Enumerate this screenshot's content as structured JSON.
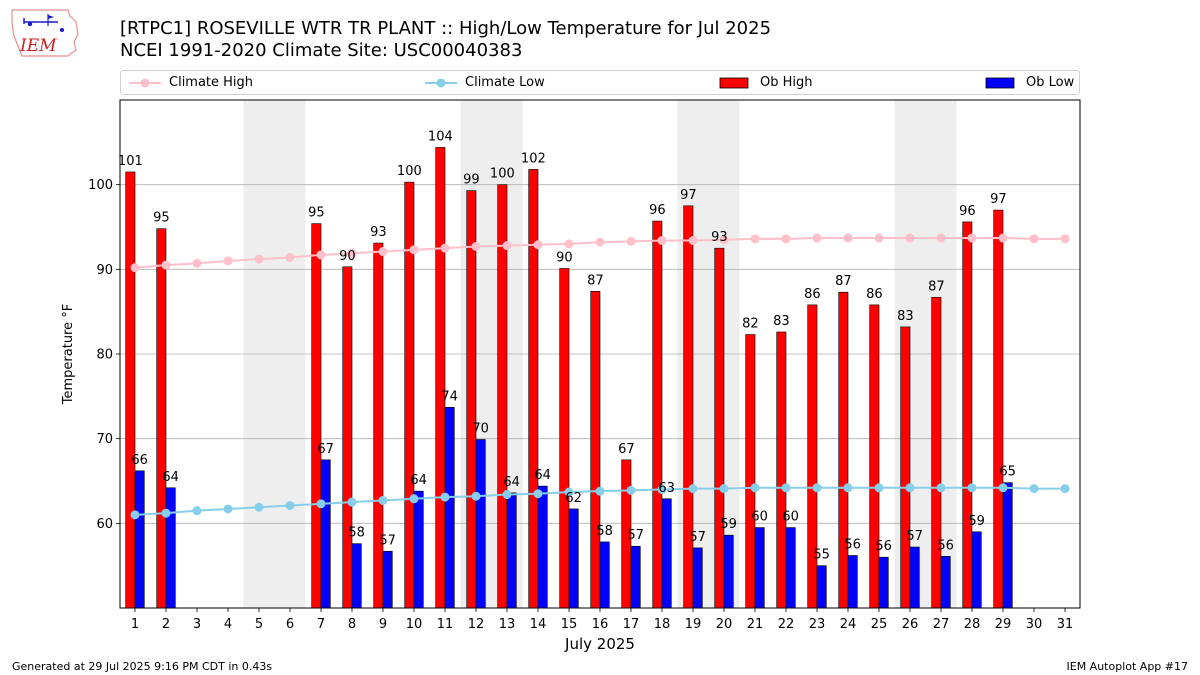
{
  "header": {
    "title_line1": "[RTPC1] ROSEVILLE WTR TR PLANT :: High/Low Temperature for Jul 2025",
    "title_line2": "NCEI 1991-2020 Climate Site: USC00040383",
    "logo_text": "IEM"
  },
  "footer": {
    "left": "Generated at 29 Jul 2025 9:16 PM CDT in 0.43s",
    "right": "IEM Autoplot App #17"
  },
  "legend": [
    {
      "label": "Climate High",
      "kind": "line",
      "color": "#ffc0cb"
    },
    {
      "label": "Climate Low",
      "kind": "line",
      "color": "#87ceeb"
    },
    {
      "label": "Ob High",
      "kind": "bar",
      "color": "#ff0000"
    },
    {
      "label": "Ob Low",
      "kind": "bar",
      "color": "#0000ff"
    }
  ],
  "chart_data": {
    "type": "bar",
    "xlabel": "July 2025",
    "ylabel": "Temperature °F",
    "ylim": [
      50,
      110
    ],
    "yticks": [
      60,
      70,
      80,
      90,
      100
    ],
    "grid": "horizontal",
    "legend_position": "top",
    "categories": [
      "1",
      "2",
      "3",
      "4",
      "5",
      "6",
      "7",
      "8",
      "9",
      "10",
      "11",
      "12",
      "13",
      "14",
      "15",
      "16",
      "17",
      "18",
      "19",
      "20",
      "21",
      "22",
      "23",
      "24",
      "25",
      "26",
      "27",
      "28",
      "29",
      "30",
      "31"
    ],
    "weekend_days": [
      5,
      6,
      12,
      13,
      19,
      20,
      26,
      27
    ],
    "series": [
      {
        "name": "Ob High",
        "type": "bar",
        "color": "#ff0000",
        "values": [
          101.5,
          94.8,
          null,
          null,
          null,
          null,
          95.4,
          90.3,
          93.1,
          100.3,
          104.4,
          99.3,
          100.0,
          101.8,
          90.1,
          87.4,
          67.5,
          95.7,
          97.5,
          92.5,
          82.3,
          82.6,
          85.8,
          87.3,
          85.8,
          83.2,
          86.7,
          95.6,
          97.0,
          null,
          null
        ],
        "labels": [
          "101",
          "95",
          "",
          "",
          "",
          "",
          "95",
          "90",
          "93",
          "100",
          "104",
          "99",
          "100",
          "102",
          "90",
          "87",
          "67",
          "96",
          "97",
          "93",
          "82",
          "83",
          "86",
          "87",
          "86",
          "83",
          "87",
          "96",
          "97",
          "",
          ""
        ]
      },
      {
        "name": "Ob Low",
        "type": "bar",
        "color": "#0000ff",
        "values": [
          66.2,
          64.2,
          null,
          null,
          null,
          null,
          67.5,
          57.6,
          56.7,
          63.8,
          73.7,
          69.9,
          63.6,
          64.4,
          61.7,
          57.8,
          57.3,
          62.9,
          57.1,
          58.6,
          59.5,
          59.5,
          55.0,
          56.2,
          56.0,
          57.2,
          56.1,
          59.0,
          64.8,
          null,
          null
        ],
        "labels": [
          "66",
          "64",
          "",
          "",
          "",
          "",
          "67",
          "58",
          "57",
          "64",
          "74",
          "70",
          "64",
          "64",
          "62",
          "58",
          "57",
          "63",
          "57",
          "59",
          "60",
          "60",
          "55",
          "56",
          "56",
          "57",
          "56",
          "59",
          "65",
          "",
          ""
        ]
      },
      {
        "name": "Climate High",
        "type": "line",
        "color": "#ffc0cb",
        "values": [
          90.2,
          90.5,
          90.7,
          91.0,
          91.2,
          91.4,
          91.7,
          91.9,
          92.1,
          92.3,
          92.5,
          92.7,
          92.8,
          92.9,
          93.0,
          93.2,
          93.3,
          93.4,
          93.4,
          93.5,
          93.6,
          93.6,
          93.7,
          93.7,
          93.7,
          93.7,
          93.7,
          93.7,
          93.7,
          93.6,
          93.6
        ]
      },
      {
        "name": "Climate Low",
        "type": "line",
        "color": "#87ceeb",
        "values": [
          61.0,
          61.2,
          61.5,
          61.7,
          61.9,
          62.1,
          62.3,
          62.5,
          62.7,
          62.9,
          63.1,
          63.2,
          63.4,
          63.5,
          63.7,
          63.8,
          63.9,
          64.0,
          64.1,
          64.1,
          64.2,
          64.2,
          64.2,
          64.2,
          64.2,
          64.2,
          64.2,
          64.2,
          64.2,
          64.1,
          64.1
        ]
      }
    ]
  }
}
